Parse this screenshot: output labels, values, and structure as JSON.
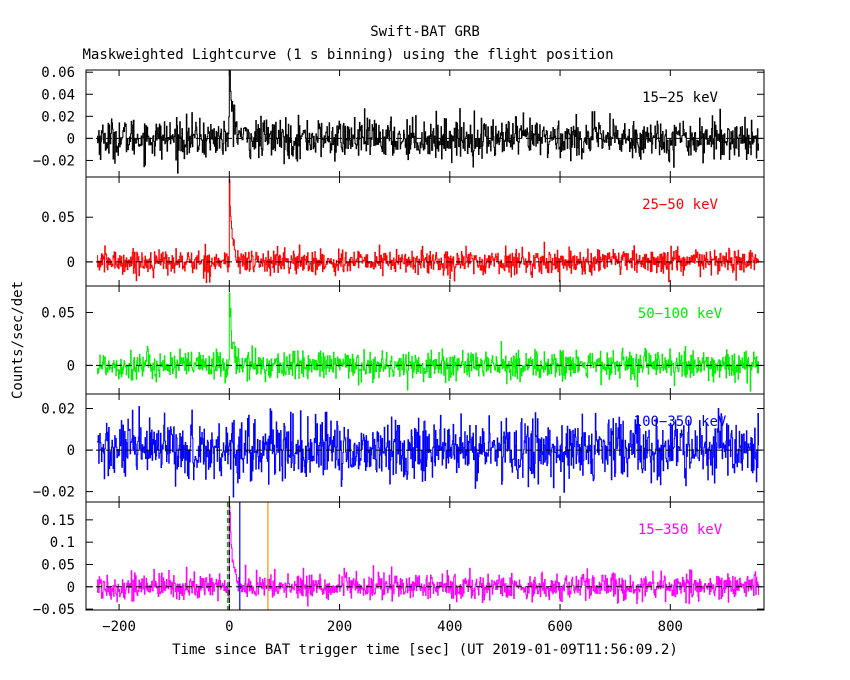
{
  "chart_data": {
    "type": "line",
    "title": "Swift-BAT GRB",
    "subtitle": "Maskweighted Lightcurve (1 s binning) using the flight position",
    "xlabel": "Time since BAT trigger time [sec] (UT 2019-01-09T11:56:09.2)",
    "ylabel": "Counts/sec/det",
    "xlim": [
      -260,
      970
    ],
    "x_ticks": [
      -200,
      0,
      200,
      400,
      600,
      800
    ],
    "series_range": [
      -240,
      960
    ],
    "vlines": [
      {
        "x": -3,
        "color": "#00aa00",
        "style": "dashed"
      },
      {
        "x": 0,
        "color": "#000000",
        "style": "dashed"
      },
      {
        "x": 19,
        "color": "#0000ff",
        "style": "solid"
      },
      {
        "x": 70,
        "color": "#ff8c00",
        "style": "solid"
      }
    ],
    "panels": [
      {
        "name": "15-25 keV",
        "label": "15−25 keV",
        "color": "#000000",
        "ylim": [
          -0.035,
          0.062
        ],
        "yticks": [
          -0.02,
          0,
          0.02,
          0.04,
          0.06
        ],
        "ytick_labels": [
          "−0.02",
          "0",
          "0.02",
          "0.04",
          "0.06"
        ],
        "noise": 0.009,
        "peak": 0.055,
        "decay": 6
      },
      {
        "name": "25-50 keV",
        "label": "25−50 keV",
        "color": "#ff0000",
        "ylim": [
          -0.027,
          0.095
        ],
        "yticks": [
          0,
          0.05
        ],
        "ytick_labels": [
          "0",
          "0.05"
        ],
        "noise": 0.007,
        "peak": 0.085,
        "decay": 4
      },
      {
        "name": "50-100 keV",
        "label": "50−100 keV",
        "color": "#00ee00",
        "ylim": [
          -0.027,
          0.075
        ],
        "yticks": [
          0,
          0.05
        ],
        "ytick_labels": [
          "0",
          "0.05"
        ],
        "noise": 0.007,
        "peak": 0.065,
        "decay": 4
      },
      {
        "name": "100-350 keV",
        "label": "100−350 keV",
        "color": "#0000ff",
        "ylim": [
          -0.025,
          0.027
        ],
        "yticks": [
          -0.02,
          0,
          0.02
        ],
        "ytick_labels": [
          "−0.02",
          "0",
          "0.02"
        ],
        "noise": 0.0075,
        "peak": 0.0,
        "decay": 3
      },
      {
        "name": "15-350 keV",
        "label": "15−350 keV",
        "color": "#ff00ff",
        "ylim": [
          -0.052,
          0.19
        ],
        "yticks": [
          -0.05,
          0,
          0.05,
          0.1,
          0.15
        ],
        "ytick_labels": [
          "−0.05",
          "0",
          "0.05",
          "0.1",
          "0.15"
        ],
        "noise": 0.015,
        "peak": 0.18,
        "decay": 5
      }
    ]
  }
}
